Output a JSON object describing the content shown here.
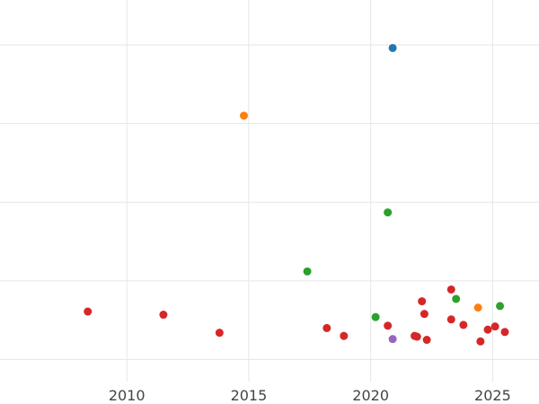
{
  "chart_data": {
    "type": "scatter",
    "title": "",
    "xlabel": "",
    "ylabel": "",
    "xlim": [
      2004.8,
      2026.9
    ],
    "ylim": [
      -0.28,
      4.57
    ],
    "x_ticks": [
      2010,
      2015,
      2020,
      2025
    ],
    "x_tick_labels": [
      "2010",
      "2015",
      "2020",
      "2025"
    ],
    "y_gridlines": [
      0,
      1,
      2,
      3,
      4
    ],
    "grid": "both",
    "legend": "none",
    "series": [
      {
        "color": "#d62728",
        "points": [
          {
            "x": 2008.4,
            "y": 0.61
          },
          {
            "x": 2011.5,
            "y": 0.57
          },
          {
            "x": 2013.8,
            "y": 0.34
          },
          {
            "x": 2018.2,
            "y": 0.4
          },
          {
            "x": 2018.9,
            "y": 0.3
          },
          {
            "x": 2020.7,
            "y": 0.43
          },
          {
            "x": 2021.8,
            "y": 0.3
          },
          {
            "x": 2021.9,
            "y": 0.29
          },
          {
            "x": 2022.1,
            "y": 0.74
          },
          {
            "x": 2022.2,
            "y": 0.58
          },
          {
            "x": 2022.3,
            "y": 0.25
          },
          {
            "x": 2023.3,
            "y": 0.89
          },
          {
            "x": 2023.3,
            "y": 0.51
          },
          {
            "x": 2023.8,
            "y": 0.44
          },
          {
            "x": 2024.5,
            "y": 0.23
          },
          {
            "x": 2024.8,
            "y": 0.38
          },
          {
            "x": 2025.1,
            "y": 0.42
          },
          {
            "x": 2025.5,
            "y": 0.35
          }
        ]
      },
      {
        "color": "#2ca02c",
        "points": [
          {
            "x": 2017.4,
            "y": 1.12
          },
          {
            "x": 2020.2,
            "y": 0.54
          },
          {
            "x": 2020.7,
            "y": 1.87
          },
          {
            "x": 2023.5,
            "y": 0.77
          },
          {
            "x": 2025.3,
            "y": 0.68
          }
        ]
      },
      {
        "color": "#ff7f0e",
        "points": [
          {
            "x": 2014.8,
            "y": 3.1
          },
          {
            "x": 2024.4,
            "y": 0.66
          }
        ]
      },
      {
        "color": "#1f77b4",
        "points": [
          {
            "x": 2020.9,
            "y": 3.96
          }
        ]
      },
      {
        "color": "#9467bd",
        "points": [
          {
            "x": 2020.9,
            "y": 0.26
          }
        ]
      }
    ]
  }
}
